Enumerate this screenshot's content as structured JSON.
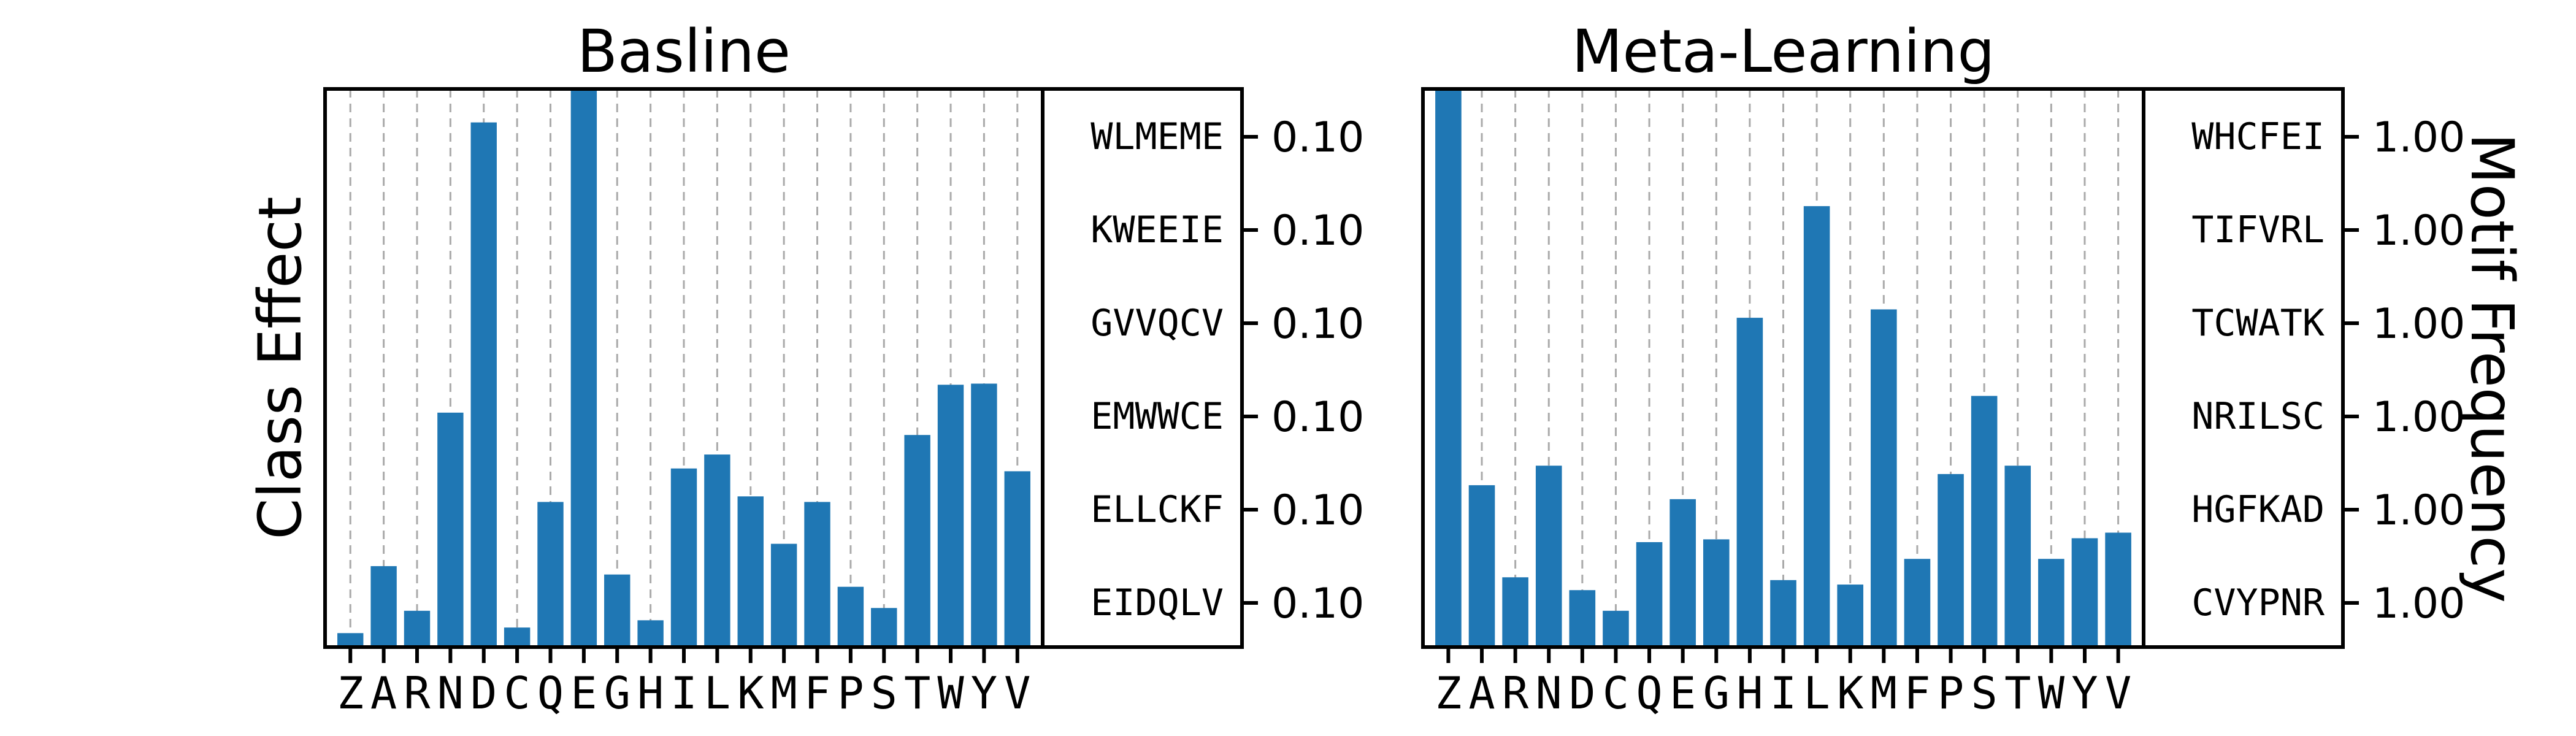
{
  "figure": {
    "ylabel_left": "Class Effect",
    "ylabel_right": "Motif Frequency"
  },
  "chart_data": [
    {
      "type": "bar",
      "title": "Basline",
      "color": "#1f77b4",
      "categories": [
        "Z",
        "A",
        "R",
        "N",
        "D",
        "C",
        "Q",
        "E",
        "G",
        "H",
        "I",
        "L",
        "K",
        "M",
        "F",
        "P",
        "S",
        "T",
        "W",
        "Y",
        "V"
      ],
      "values": [
        0.025,
        0.145,
        0.065,
        0.42,
        0.94,
        0.035,
        0.26,
        1.0,
        0.13,
        0.048,
        0.32,
        0.345,
        0.27,
        0.185,
        0.26,
        0.108,
        0.07,
        0.38,
        0.47,
        0.472,
        0.315
      ],
      "ylim": [
        0,
        1.0
      ],
      "grid": "vertical",
      "motifs": [
        "WLMEME",
        "KWEEIE",
        "GVVQCV",
        "EMWWCE",
        "ELLCKF",
        "EIDQLV"
      ],
      "motif_frequencies": [
        "0.10",
        "0.10",
        "0.10",
        "0.10",
        "0.10",
        "0.10"
      ]
    },
    {
      "type": "bar",
      "title": "Meta-Learning",
      "color": "#1f77b4",
      "categories": [
        "Z",
        "A",
        "R",
        "N",
        "D",
        "C",
        "Q",
        "E",
        "G",
        "H",
        "I",
        "L",
        "K",
        "M",
        "F",
        "P",
        "S",
        "T",
        "W",
        "Y",
        "V"
      ],
      "values": [
        1.0,
        0.29,
        0.125,
        0.325,
        0.102,
        0.065,
        0.188,
        0.265,
        0.193,
        0.59,
        0.12,
        0.79,
        0.112,
        0.605,
        0.158,
        0.31,
        0.45,
        0.325,
        0.158,
        0.195,
        0.205
      ],
      "ylim": [
        0,
        1.0
      ],
      "grid": "vertical",
      "motifs": [
        "WHCFEI",
        "TIFVRL",
        "TCWATK",
        "NRILSC",
        "HGFKAD",
        "CVYPNR"
      ],
      "motif_frequencies": [
        "1.00",
        "1.00",
        "1.00",
        "1.00",
        "1.00",
        "1.00"
      ]
    }
  ]
}
